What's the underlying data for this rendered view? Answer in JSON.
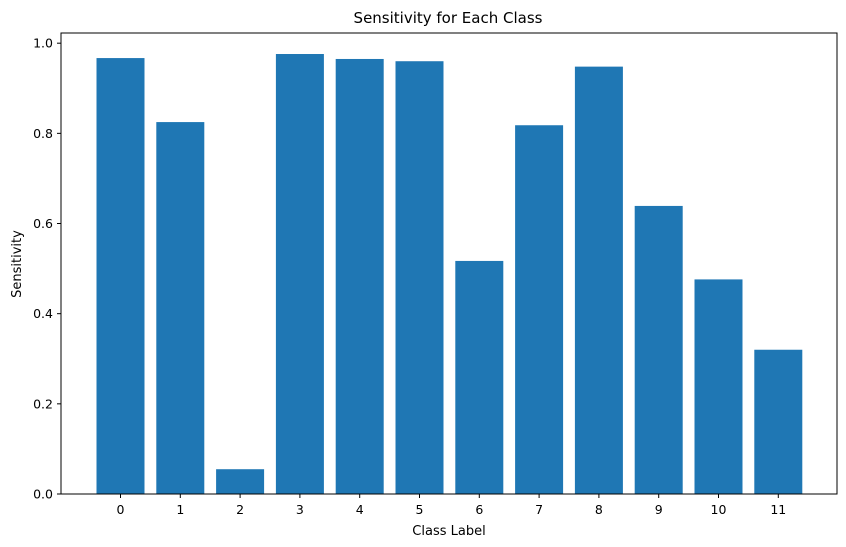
{
  "chart_data": {
    "type": "bar",
    "title": "Sensitivity for Each Class",
    "xlabel": "Class Label",
    "ylabel": "Sensitivity",
    "categories": [
      "0",
      "1",
      "2",
      "3",
      "4",
      "5",
      "6",
      "7",
      "8",
      "9",
      "10",
      "11"
    ],
    "values": [
      0.967,
      0.825,
      0.055,
      0.976,
      0.965,
      0.96,
      0.517,
      0.818,
      0.948,
      0.639,
      0.476,
      0.32
    ],
    "ylim": [
      0,
      1.0226
    ],
    "yticks": [
      0.0,
      0.2,
      0.4,
      0.6,
      0.8,
      1.0
    ],
    "ytick_labels": [
      "0.0",
      "0.2",
      "0.4",
      "0.6",
      "0.8",
      "1.0"
    ],
    "bar_color": "#1f77b4",
    "grid": false,
    "legend": "none"
  }
}
